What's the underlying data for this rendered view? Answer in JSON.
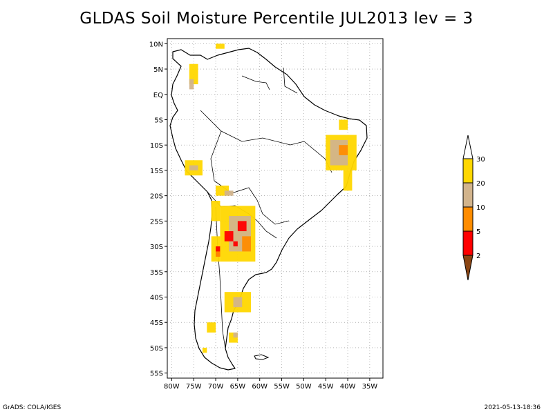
{
  "title": "GLDAS Soil Moisture Percentile JUL2013 lev = 3",
  "map": {
    "lat_labels": [
      "10N",
      "5N",
      "EQ",
      "5S",
      "10S",
      "15S",
      "20S",
      "25S",
      "30S",
      "35S",
      "40S",
      "45S",
      "50S",
      "55S"
    ],
    "lon_labels": [
      "80W",
      "75W",
      "70W",
      "65W",
      "60W",
      "55W",
      "50W",
      "45W",
      "40W",
      "35W"
    ],
    "lat_range": [
      -56,
      11
    ],
    "lon_range": [
      -81,
      -32
    ],
    "grid_lines": "dotted",
    "coastline_color": "#000000"
  },
  "legend": {
    "labels": [
      "2",
      "5",
      "10",
      "20",
      "30"
    ],
    "bins": [
      {
        "range": "<2",
        "color": "#8B4513"
      },
      {
        "range": "2-5",
        "color": "#FF0000"
      },
      {
        "range": "5-10",
        "color": "#FF8C00"
      },
      {
        "range": "10-20",
        "color": "#D2B48C"
      },
      {
        "range": "20-30",
        "color": "#FFD700"
      },
      {
        "range": ">30",
        "color": "#FFFFFF"
      }
    ]
  },
  "footer": {
    "left": "GrADS: COLA/IGES",
    "right": "2021-05-13-18:36"
  }
}
